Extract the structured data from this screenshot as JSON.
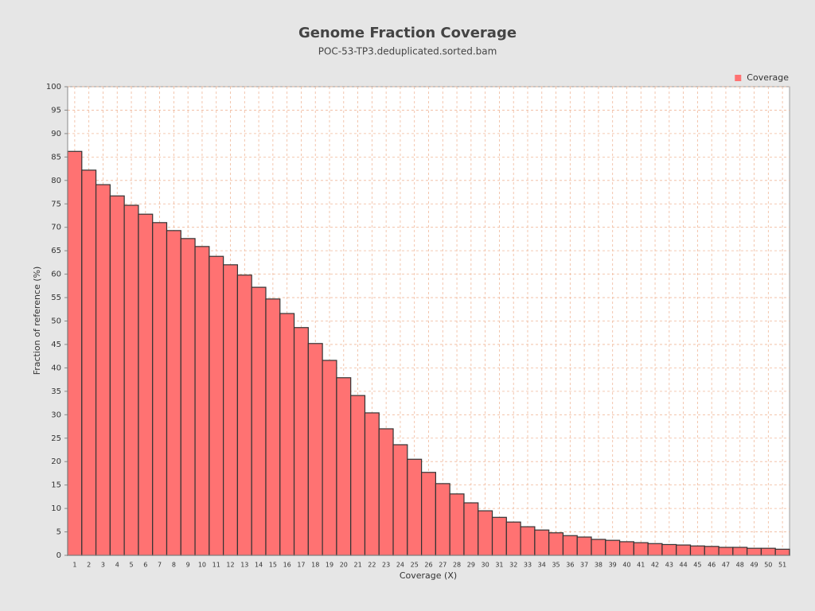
{
  "chart_data": {
    "type": "bar",
    "title": "Genome Fraction Coverage",
    "subtitle": "POC-53-TP3.deduplicated.sorted.bam",
    "x_label": "Coverage (X)",
    "y_label": "Fraction of reference (%)",
    "categories": [
      1,
      2,
      3,
      4,
      5,
      6,
      7,
      8,
      9,
      10,
      11,
      12,
      13,
      14,
      15,
      16,
      17,
      18,
      19,
      20,
      21,
      22,
      23,
      24,
      25,
      26,
      27,
      28,
      29,
      30,
      31,
      32,
      33,
      34,
      35,
      36,
      37,
      38,
      39,
      40,
      41,
      42,
      43,
      44,
      45,
      46,
      47,
      48,
      49,
      50,
      51
    ],
    "series": [
      {
        "name": "Coverage",
        "color": "#ff7272",
        "values": [
          86.2,
          82.2,
          79.1,
          76.7,
          74.7,
          72.8,
          71.0,
          69.3,
          67.6,
          65.9,
          63.8,
          62.0,
          59.8,
          57.2,
          54.7,
          51.6,
          48.6,
          45.2,
          41.6,
          37.9,
          34.1,
          30.4,
          27.0,
          23.6,
          20.5,
          17.7,
          15.3,
          13.1,
          11.2,
          9.5,
          8.1,
          7.1,
          6.1,
          5.4,
          4.8,
          4.2,
          3.9,
          3.4,
          3.2,
          2.9,
          2.7,
          2.5,
          2.3,
          2.2,
          2.0,
          1.9,
          1.7,
          1.7,
          1.5,
          1.5,
          1.3
        ]
      }
    ],
    "ylim": [
      0,
      100
    ],
    "yticks": [
      0,
      5,
      10,
      15,
      20,
      25,
      30,
      35,
      40,
      45,
      50,
      55,
      60,
      65,
      70,
      75,
      80,
      85,
      90,
      95,
      100
    ],
    "grid": true,
    "legend": "top-right"
  }
}
